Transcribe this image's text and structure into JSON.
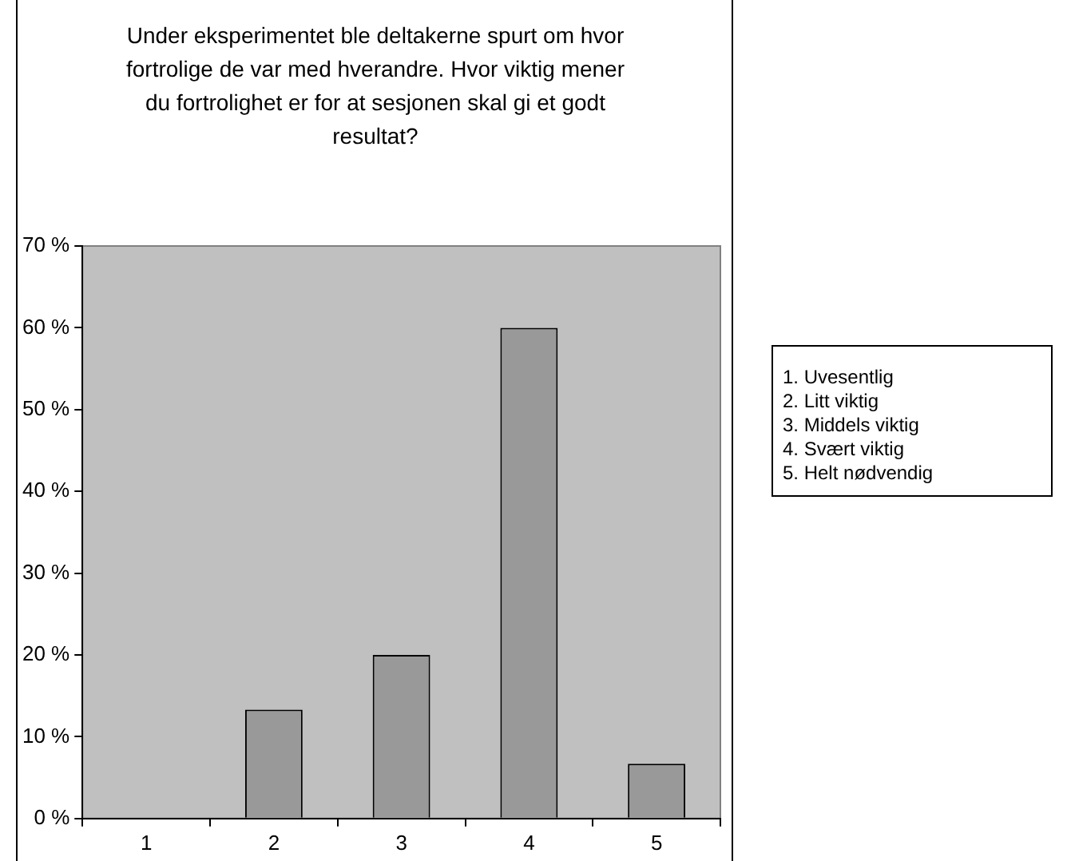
{
  "chart_data": {
    "type": "bar",
    "title": "Under eksperimentet ble deltakerne spurt om hvor fortrolige de var med hverandre. Hvor viktig mener du fortrolighet er for at sesjonen skal gi et godt resultat?",
    "categories": [
      "1",
      "2",
      "3",
      "4",
      "5"
    ],
    "values": [
      0,
      13.3,
      20,
      60,
      6.7
    ],
    "color": "#999999",
    "ylim": [
      0,
      70
    ],
    "yticks": [
      {
        "value": 0,
        "label": "0 %"
      },
      {
        "value": 10,
        "label": "10 %"
      },
      {
        "value": 20,
        "label": "20 %"
      },
      {
        "value": 30,
        "label": "30 %"
      },
      {
        "value": 40,
        "label": "40 %"
      },
      {
        "value": 50,
        "label": "50 %"
      },
      {
        "value": 60,
        "label": "60 %"
      },
      {
        "value": 70,
        "label": "70 %"
      }
    ],
    "annotations": [
      "1. Uvesentlig",
      "2. Litt viktig",
      "3. Middels viktig",
      "4. Svært viktig",
      "5. Helt nødvendig"
    ]
  }
}
